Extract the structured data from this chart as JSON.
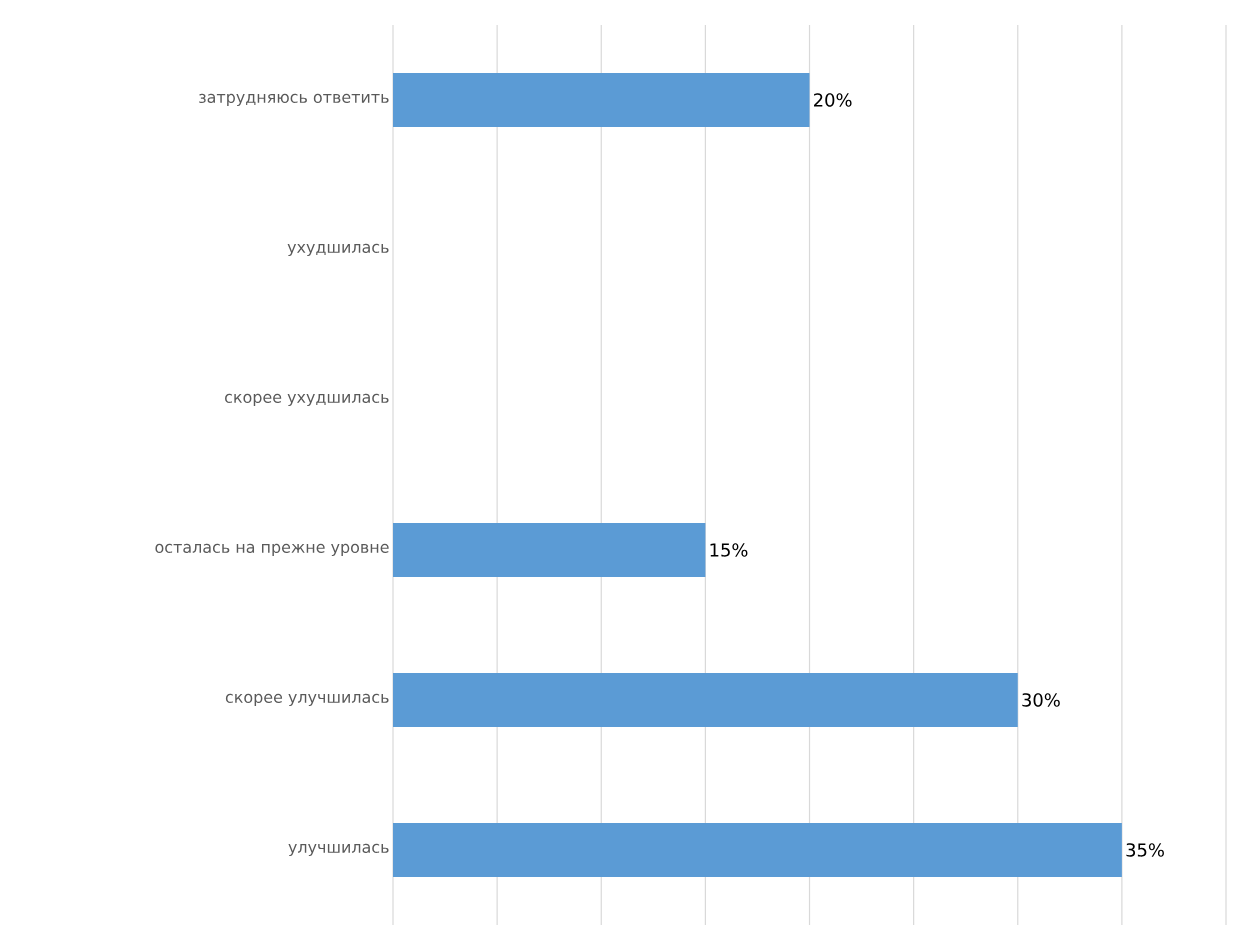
{
  "chart_data": {
    "type": "bar",
    "orientation": "horizontal",
    "categories": [
      "затрудняюсь ответить",
      "ухудшилась",
      "скорее ухудшилась",
      "осталась на прежне уровне",
      "скорее улучшилась",
      "улучшилась"
    ],
    "values": [
      20,
      null,
      null,
      15,
      30,
      35
    ],
    "value_labels": [
      "20%",
      null,
      null,
      "15%",
      "30%",
      "35%"
    ],
    "color": "#5b9bd5",
    "xlim": [
      0,
      40
    ],
    "xticks": [
      {
        "value": 0,
        "label": null
      },
      {
        "value": 5,
        "label": null
      },
      {
        "value": 10,
        "label": null
      },
      {
        "value": 15,
        "label": null
      },
      {
        "value": 20,
        "label": null
      },
      {
        "value": 25,
        "label": null
      },
      {
        "value": 30,
        "label": null
      },
      {
        "value": 35,
        "label": null
      },
      {
        "value": 40,
        "label": null
      }
    ],
    "grid": "x",
    "tick_labels": "y"
  }
}
